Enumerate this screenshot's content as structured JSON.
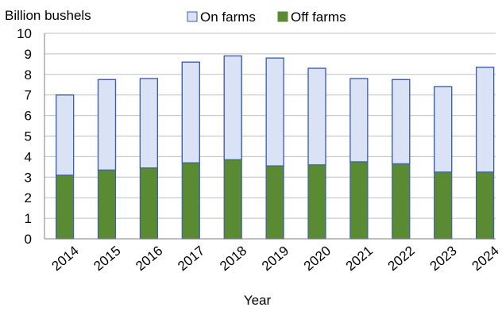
{
  "chart_data": {
    "type": "bar",
    "stacked": true,
    "title": "",
    "ylabel": "Billion bushels",
    "xlabel": "Year",
    "ylim": [
      0,
      10
    ],
    "yticks": [
      0,
      1,
      2,
      3,
      4,
      5,
      6,
      7,
      8,
      9,
      10
    ],
    "grid": true,
    "legend_position": "top",
    "categories": [
      "2014",
      "2015",
      "2016",
      "2017",
      "2018",
      "2019",
      "2020",
      "2021",
      "2022",
      "2023",
      "2024"
    ],
    "series": [
      {
        "name": "Off farms",
        "color": "#5a8a32",
        "values": [
          3.1,
          3.35,
          3.45,
          3.7,
          3.85,
          3.55,
          3.6,
          3.75,
          3.65,
          3.25,
          3.25
        ]
      },
      {
        "name": "On farms",
        "color": "#dae3f6",
        "values": [
          3.9,
          4.4,
          4.35,
          4.9,
          5.05,
          5.25,
          4.7,
          4.05,
          4.1,
          4.15,
          5.1
        ]
      }
    ],
    "legend_order": [
      "On farms",
      "Off farms"
    ],
    "bar_edge_color": "#3d5fa8"
  }
}
